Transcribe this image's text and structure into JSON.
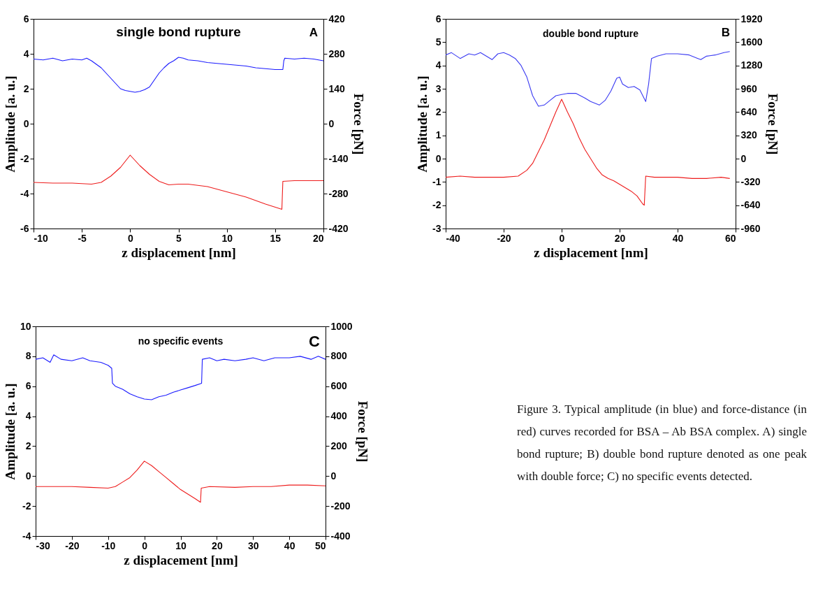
{
  "chart_data": [
    {
      "type": "line",
      "title": "single bond rupture",
      "xlabel": "z displacement [nm]",
      "ylabel": "Amplitude [a. u.]",
      "y2label": "Force [pN]",
      "annotations": [
        "A"
      ],
      "xlim": [
        -10,
        20
      ],
      "xticks": [
        -10,
        -5,
        0,
        5,
        10,
        15,
        20
      ],
      "ylim": [
        -6,
        6
      ],
      "yticks": [
        -6,
        -4,
        -2,
        0,
        2,
        4,
        6
      ],
      "y2lim": [
        -420,
        420
      ],
      "y2ticks": [
        -420,
        -280,
        -140,
        0,
        140,
        280,
        420
      ],
      "series": [
        {
          "color": "#1a1aff",
          "x": [
            -10,
            -9,
            -8,
            -7,
            -6,
            -5,
            -4.5,
            -4,
            -3.5,
            -3,
            -2.5,
            -2,
            -1.5,
            -1,
            -0.5,
            0,
            0.5,
            1,
            1.5,
            2,
            2.5,
            3,
            3.5,
            4,
            4.5,
            5,
            5.5,
            6,
            7,
            8,
            9,
            10,
            11,
            12,
            13,
            14,
            15,
            15.8,
            15.9,
            16,
            17,
            18,
            19,
            20
          ],
          "values": [
            3.7,
            3.65,
            3.75,
            3.6,
            3.7,
            3.65,
            3.75,
            3.6,
            3.4,
            3.2,
            2.9,
            2.6,
            2.3,
            2.0,
            1.9,
            1.85,
            1.8,
            1.85,
            1.95,
            2.1,
            2.5,
            2.9,
            3.2,
            3.45,
            3.6,
            3.8,
            3.75,
            3.65,
            3.6,
            3.5,
            3.45,
            3.4,
            3.35,
            3.3,
            3.2,
            3.15,
            3.1,
            3.1,
            3.6,
            3.75,
            3.7,
            3.75,
            3.7,
            3.6
          ]
        },
        {
          "color": "#ee1c1c",
          "axis": "y2",
          "x": [
            -10,
            -8,
            -6,
            -4,
            -3,
            -2,
            -1,
            0,
            1,
            2,
            3,
            4,
            5,
            6,
            8,
            10,
            12,
            14,
            15.7,
            15.8,
            17,
            20
          ],
          "values": [
            -235,
            -238,
            -238,
            -242,
            -235,
            -210,
            -175,
            -126,
            -168,
            -203,
            -231,
            -245,
            -242,
            -242,
            -252,
            -273,
            -294,
            -322,
            -343,
            -231,
            -228,
            -228
          ]
        }
      ]
    },
    {
      "type": "line",
      "title": "double bond rupture",
      "xlabel": "z displacement [nm]",
      "ylabel": "Amplitude [a. u.]",
      "y2label": "Force [pN]",
      "annotations": [
        "B"
      ],
      "xlim": [
        -40,
        60
      ],
      "xticks": [
        -40,
        -20,
        0,
        20,
        40,
        60
      ],
      "ylim": [
        -3,
        6
      ],
      "yticks": [
        -3,
        -2,
        -1,
        0,
        1,
        2,
        3,
        4,
        5,
        6
      ],
      "y2lim": [
        -960,
        1920
      ],
      "y2ticks": [
        -960,
        -640,
        -320,
        0,
        320,
        640,
        960,
        1280,
        1600,
        1920
      ],
      "series": [
        {
          "color": "#3a3af2",
          "x": [
            -40,
            -38,
            -35,
            -32,
            -30,
            -28,
            -26,
            -24,
            -22,
            -20,
            -18,
            -16,
            -14,
            -12,
            -10,
            -8,
            -6,
            -4,
            -2,
            0,
            2,
            5,
            8,
            10,
            13,
            15,
            17,
            19,
            20,
            21,
            23,
            25,
            27,
            29,
            30,
            31,
            33,
            36,
            40,
            44,
            47,
            48,
            50,
            53,
            56,
            58
          ],
          "values": [
            4.45,
            4.55,
            4.3,
            4.5,
            4.45,
            4.55,
            4.4,
            4.25,
            4.5,
            4.55,
            4.45,
            4.3,
            4.0,
            3.5,
            2.7,
            2.25,
            2.3,
            2.5,
            2.7,
            2.75,
            2.8,
            2.8,
            2.6,
            2.45,
            2.3,
            2.5,
            2.9,
            3.45,
            3.5,
            3.2,
            3.05,
            3.1,
            2.95,
            2.45,
            3.2,
            4.3,
            4.4,
            4.5,
            4.5,
            4.45,
            4.3,
            4.25,
            4.4,
            4.45,
            4.55,
            4.6
          ]
        },
        {
          "color": "#ee1c1c",
          "axis": "y2",
          "x": [
            -40,
            -35,
            -30,
            -25,
            -20,
            -15,
            -12,
            -10,
            -8,
            -6,
            -4,
            -2,
            0,
            2,
            4,
            6,
            8,
            10,
            12,
            14,
            16,
            18,
            20,
            22,
            24,
            26,
            28,
            28.5,
            29,
            32,
            40,
            45,
            50,
            55,
            58
          ],
          "values": [
            -256,
            -240,
            -256,
            -256,
            -256,
            -240,
            -160,
            -64,
            96,
            256,
            448,
            640,
            816,
            640,
            480,
            288,
            128,
            0,
            -128,
            -224,
            -272,
            -304,
            -352,
            -400,
            -448,
            -512,
            -624,
            -640,
            -240,
            -256,
            -256,
            -272,
            -272,
            -256,
            -272
          ]
        }
      ]
    },
    {
      "type": "line",
      "title": "no specific events",
      "xlabel": "z displacement [nm]",
      "ylabel": "Amplitude [a. u.]",
      "y2label": "Force [pN]",
      "annotations": [
        "C",
        "Figure 3.  Typical amplitude (in blue) and force-distance (in red) curves recorded for BSA – Ab BSA complex. A) single bond rupture; B) double bond rupture denoted as one peak with double force; C) no specific events detected."
      ],
      "xlim": [
        -30,
        50
      ],
      "xticks": [
        -30,
        -20,
        -10,
        0,
        10,
        20,
        30,
        40,
        50
      ],
      "ylim": [
        -4,
        10
      ],
      "yticks": [
        -4,
        -2,
        0,
        2,
        4,
        6,
        8,
        10
      ],
      "y2lim": [
        -400,
        1000
      ],
      "y2ticks": [
        -400,
        -200,
        0,
        200,
        400,
        600,
        800,
        1000
      ],
      "series": [
        {
          "color": "#1a1aff",
          "x": [
            -30,
            -28,
            -26,
            -25,
            -23,
            -20,
            -17,
            -15,
            -12,
            -10,
            -9,
            -8.8,
            -8,
            -6,
            -4,
            -2,
            0,
            2,
            4,
            6,
            8,
            10,
            12,
            14,
            15.8,
            16,
            18,
            20,
            22,
            25,
            28,
            30,
            33,
            36,
            40,
            43,
            46,
            48,
            50
          ],
          "values": [
            7.8,
            7.9,
            7.6,
            8.1,
            7.8,
            7.7,
            7.9,
            7.7,
            7.6,
            7.4,
            7.2,
            6.2,
            6.0,
            5.8,
            5.5,
            5.3,
            5.15,
            5.1,
            5.3,
            5.4,
            5.6,
            5.75,
            5.9,
            6.05,
            6.2,
            7.8,
            7.9,
            7.7,
            7.8,
            7.7,
            7.8,
            7.9,
            7.7,
            7.9,
            7.9,
            8.0,
            7.8,
            8.0,
            7.8
          ]
        },
        {
          "color": "#ee1c1c",
          "axis": "y2",
          "x": [
            -30,
            -25,
            -20,
            -15,
            -10,
            -8,
            -6,
            -4,
            -2,
            0,
            2,
            4,
            6,
            8,
            10,
            12,
            14,
            15.5,
            15.7,
            18,
            25,
            30,
            35,
            40,
            45,
            50
          ],
          "values": [
            -70,
            -70,
            -70,
            -75,
            -80,
            -70,
            -40,
            -10,
            40,
            100,
            70,
            30,
            -10,
            -50,
            -90,
            -120,
            -150,
            -175,
            -80,
            -70,
            -75,
            -70,
            -70,
            -60,
            -60,
            -65
          ]
        }
      ]
    }
  ]
}
